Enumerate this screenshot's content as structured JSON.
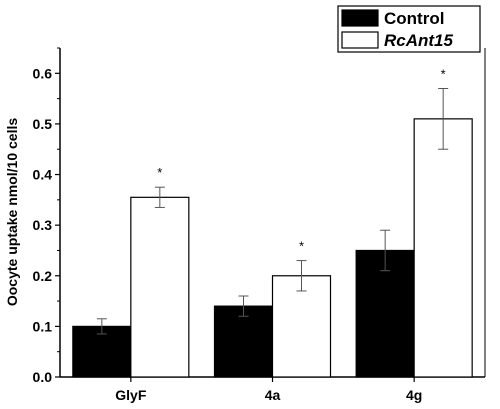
{
  "chart_data": {
    "type": "bar",
    "title": "",
    "xlabel": "",
    "ylabel": "Oocyte uptake nmol/10 cells",
    "ylim": [
      0,
      0.65
    ],
    "yticks": [
      "0.0",
      "0.1",
      "0.2",
      "0.3",
      "0.4",
      "0.5",
      "0.6"
    ],
    "categories": [
      "GlyF",
      "4a",
      "4g"
    ],
    "series": [
      {
        "name": "Control",
        "values": [
          0.1,
          0.14,
          0.25
        ],
        "errors": [
          0.015,
          0.02,
          0.04
        ],
        "color": "#000000"
      },
      {
        "name": "RcAnt15",
        "values": [
          0.355,
          0.2,
          0.51
        ],
        "errors": [
          0.02,
          0.03,
          0.06
        ],
        "color": "#ffffff"
      }
    ],
    "significance_marker": "*",
    "legend_placement": "top-right",
    "grid": false
  }
}
